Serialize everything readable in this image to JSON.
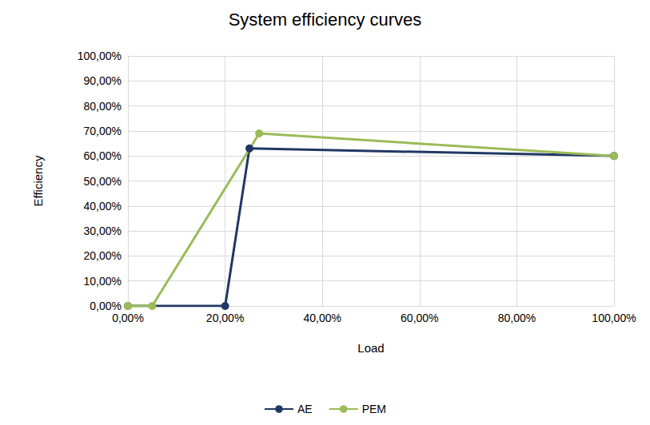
{
  "chart_data": {
    "type": "line",
    "title": "System efficiency curves",
    "x_label": "Load",
    "y_label": "Efficiency",
    "series": [
      {
        "name": "AE",
        "color": "#203864",
        "marker": "circle",
        "line_style": "solid",
        "x": [
          0,
          20,
          25,
          100
        ],
        "values": [
          0,
          0,
          63,
          60
        ]
      },
      {
        "name": "PEM",
        "color": "#9BBB59",
        "marker": "circle",
        "line_style": "solid",
        "x": [
          0,
          5,
          27,
          100
        ],
        "values": [
          0,
          0,
          69,
          60
        ]
      }
    ],
    "xlim": [
      0,
      100
    ],
    "xticks": [
      {
        "value": 0,
        "label": "0,00%"
      },
      {
        "value": 20,
        "label": "20,00%"
      },
      {
        "value": 40,
        "label": "40,00%"
      },
      {
        "value": 60,
        "label": "60,00%"
      },
      {
        "value": 80,
        "label": "80,00%"
      },
      {
        "value": 100,
        "label": "100,00%"
      }
    ],
    "ylim": [
      0,
      100
    ],
    "yticks": [
      {
        "value": 0,
        "label": "0,00%"
      },
      {
        "value": 10,
        "label": "10,00%"
      },
      {
        "value": 20,
        "label": "20,00%"
      },
      {
        "value": 30,
        "label": "30,00%"
      },
      {
        "value": 40,
        "label": "40,00%"
      },
      {
        "value": 50,
        "label": "50,00%"
      },
      {
        "value": 60,
        "label": "60,00%"
      },
      {
        "value": 70,
        "label": "70,00%"
      },
      {
        "value": 80,
        "label": "80,00%"
      },
      {
        "value": 90,
        "label": "90,00%"
      },
      {
        "value": 100,
        "label": "100,00%"
      }
    ],
    "grid": true,
    "legend": "bottom"
  }
}
